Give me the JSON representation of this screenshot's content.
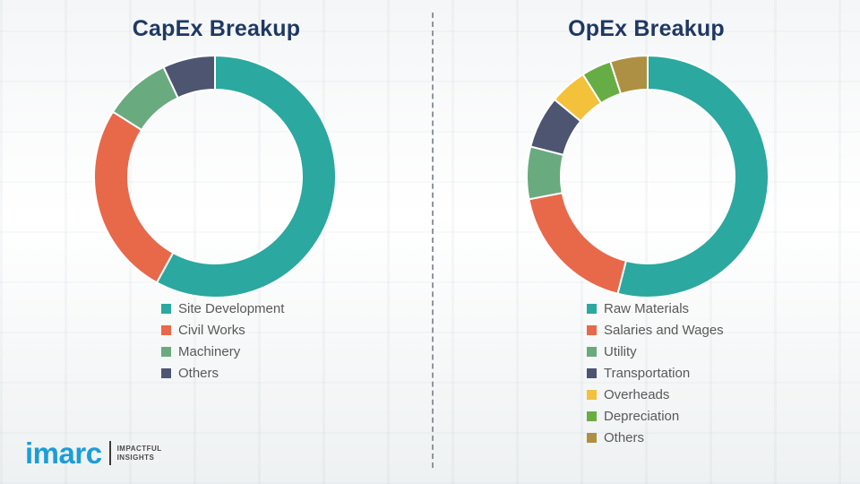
{
  "chart_data": [
    {
      "type": "pie",
      "variant": "donut",
      "title": "CapEx Breakup",
      "legend_position": "bottom-left",
      "start_angle_deg": 0,
      "direction": "clockwise",
      "segments": [
        {
          "label": "Site Development",
          "value": 58,
          "color": "#2BA89F"
        },
        {
          "label": "Civil Works",
          "value": 26,
          "color": "#E8684A"
        },
        {
          "label": "Machinery",
          "value": 9,
          "color": "#6AAA7F"
        },
        {
          "label": "Others",
          "value": 7,
          "color": "#4D5571"
        }
      ]
    },
    {
      "type": "pie",
      "variant": "donut",
      "title": "OpEx Breakup",
      "legend_position": "bottom-left",
      "start_angle_deg": 0,
      "direction": "clockwise",
      "segments": [
        {
          "label": "Raw Materials",
          "value": 54,
          "color": "#2BA89F"
        },
        {
          "label": "Salaries and Wages",
          "value": 18,
          "color": "#E8684A"
        },
        {
          "label": "Utility",
          "value": 7,
          "color": "#6AAA7F"
        },
        {
          "label": "Transportation",
          "value": 7,
          "color": "#4D5571"
        },
        {
          "label": "Overheads",
          "value": 5,
          "color": "#F3C13A"
        },
        {
          "label": "Depreciation",
          "value": 4,
          "color": "#67AD45"
        },
        {
          "label": "Others",
          "value": 5,
          "color": "#AE9044"
        }
      ]
    }
  ],
  "logo": {
    "brand": "imarc",
    "tagline": [
      "IMPACTFUL",
      "INSIGHTS"
    ],
    "brand_color": "#1B9ED8"
  }
}
